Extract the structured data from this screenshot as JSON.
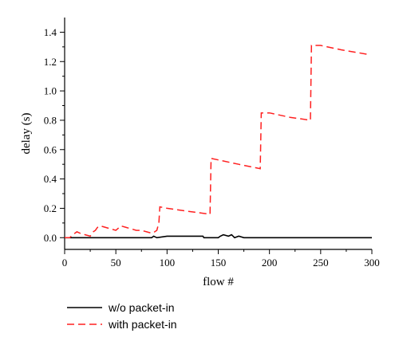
{
  "chart_data": {
    "type": "line",
    "xlabel": "flow #",
    "ylabel": "delay (s)",
    "xlim": [
      0,
      300
    ],
    "ylim": [
      -0.08,
      1.5
    ],
    "xticks": [
      0,
      50,
      100,
      150,
      200,
      250,
      300
    ],
    "yticks": [
      0.0,
      0.2,
      0.4,
      0.6,
      0.8,
      1.0,
      1.2,
      1.4
    ],
    "ytick_labels": [
      "0.0",
      "0.2",
      "0.4",
      "0.6",
      "0.8",
      "1.0",
      "1.2",
      "1.4"
    ],
    "grid": false,
    "legend_position": "bottom-left outside",
    "series": [
      {
        "name": "w/o packet-in",
        "color": "#000000",
        "dash": "solid",
        "x": [
          0,
          85,
          87,
          90,
          100,
          135,
          136,
          150,
          152,
          155,
          160,
          163,
          166,
          170,
          175,
          200,
          300
        ],
        "y": [
          0.0,
          0.0,
          0.01,
          0.0,
          0.01,
          0.01,
          0.0,
          0.0,
          0.01,
          0.02,
          0.01,
          0.02,
          0.0,
          0.01,
          0.0,
          0.0,
          0.0
        ]
      },
      {
        "name": "with packet-in",
        "color": "#ff2020",
        "dash": "dashed",
        "x": [
          0,
          5,
          8,
          12,
          15,
          20,
          25,
          28,
          30,
          32,
          35,
          40,
          45,
          50,
          55,
          60,
          65,
          70,
          75,
          80,
          85,
          88,
          90,
          92,
          93,
          100,
          120,
          142,
          143,
          150,
          170,
          191,
          192,
          200,
          220,
          240,
          241,
          250,
          270,
          295
        ],
        "y": [
          0.0,
          0.0,
          0.02,
          0.04,
          0.03,
          0.02,
          0.01,
          0.04,
          0.05,
          0.07,
          0.08,
          0.07,
          0.06,
          0.05,
          0.08,
          0.07,
          0.06,
          0.05,
          0.05,
          0.04,
          0.03,
          0.04,
          0.05,
          0.1,
          0.21,
          0.2,
          0.18,
          0.16,
          0.54,
          0.53,
          0.5,
          0.47,
          0.85,
          0.85,
          0.82,
          0.8,
          1.31,
          1.31,
          1.28,
          1.25
        ]
      }
    ]
  }
}
